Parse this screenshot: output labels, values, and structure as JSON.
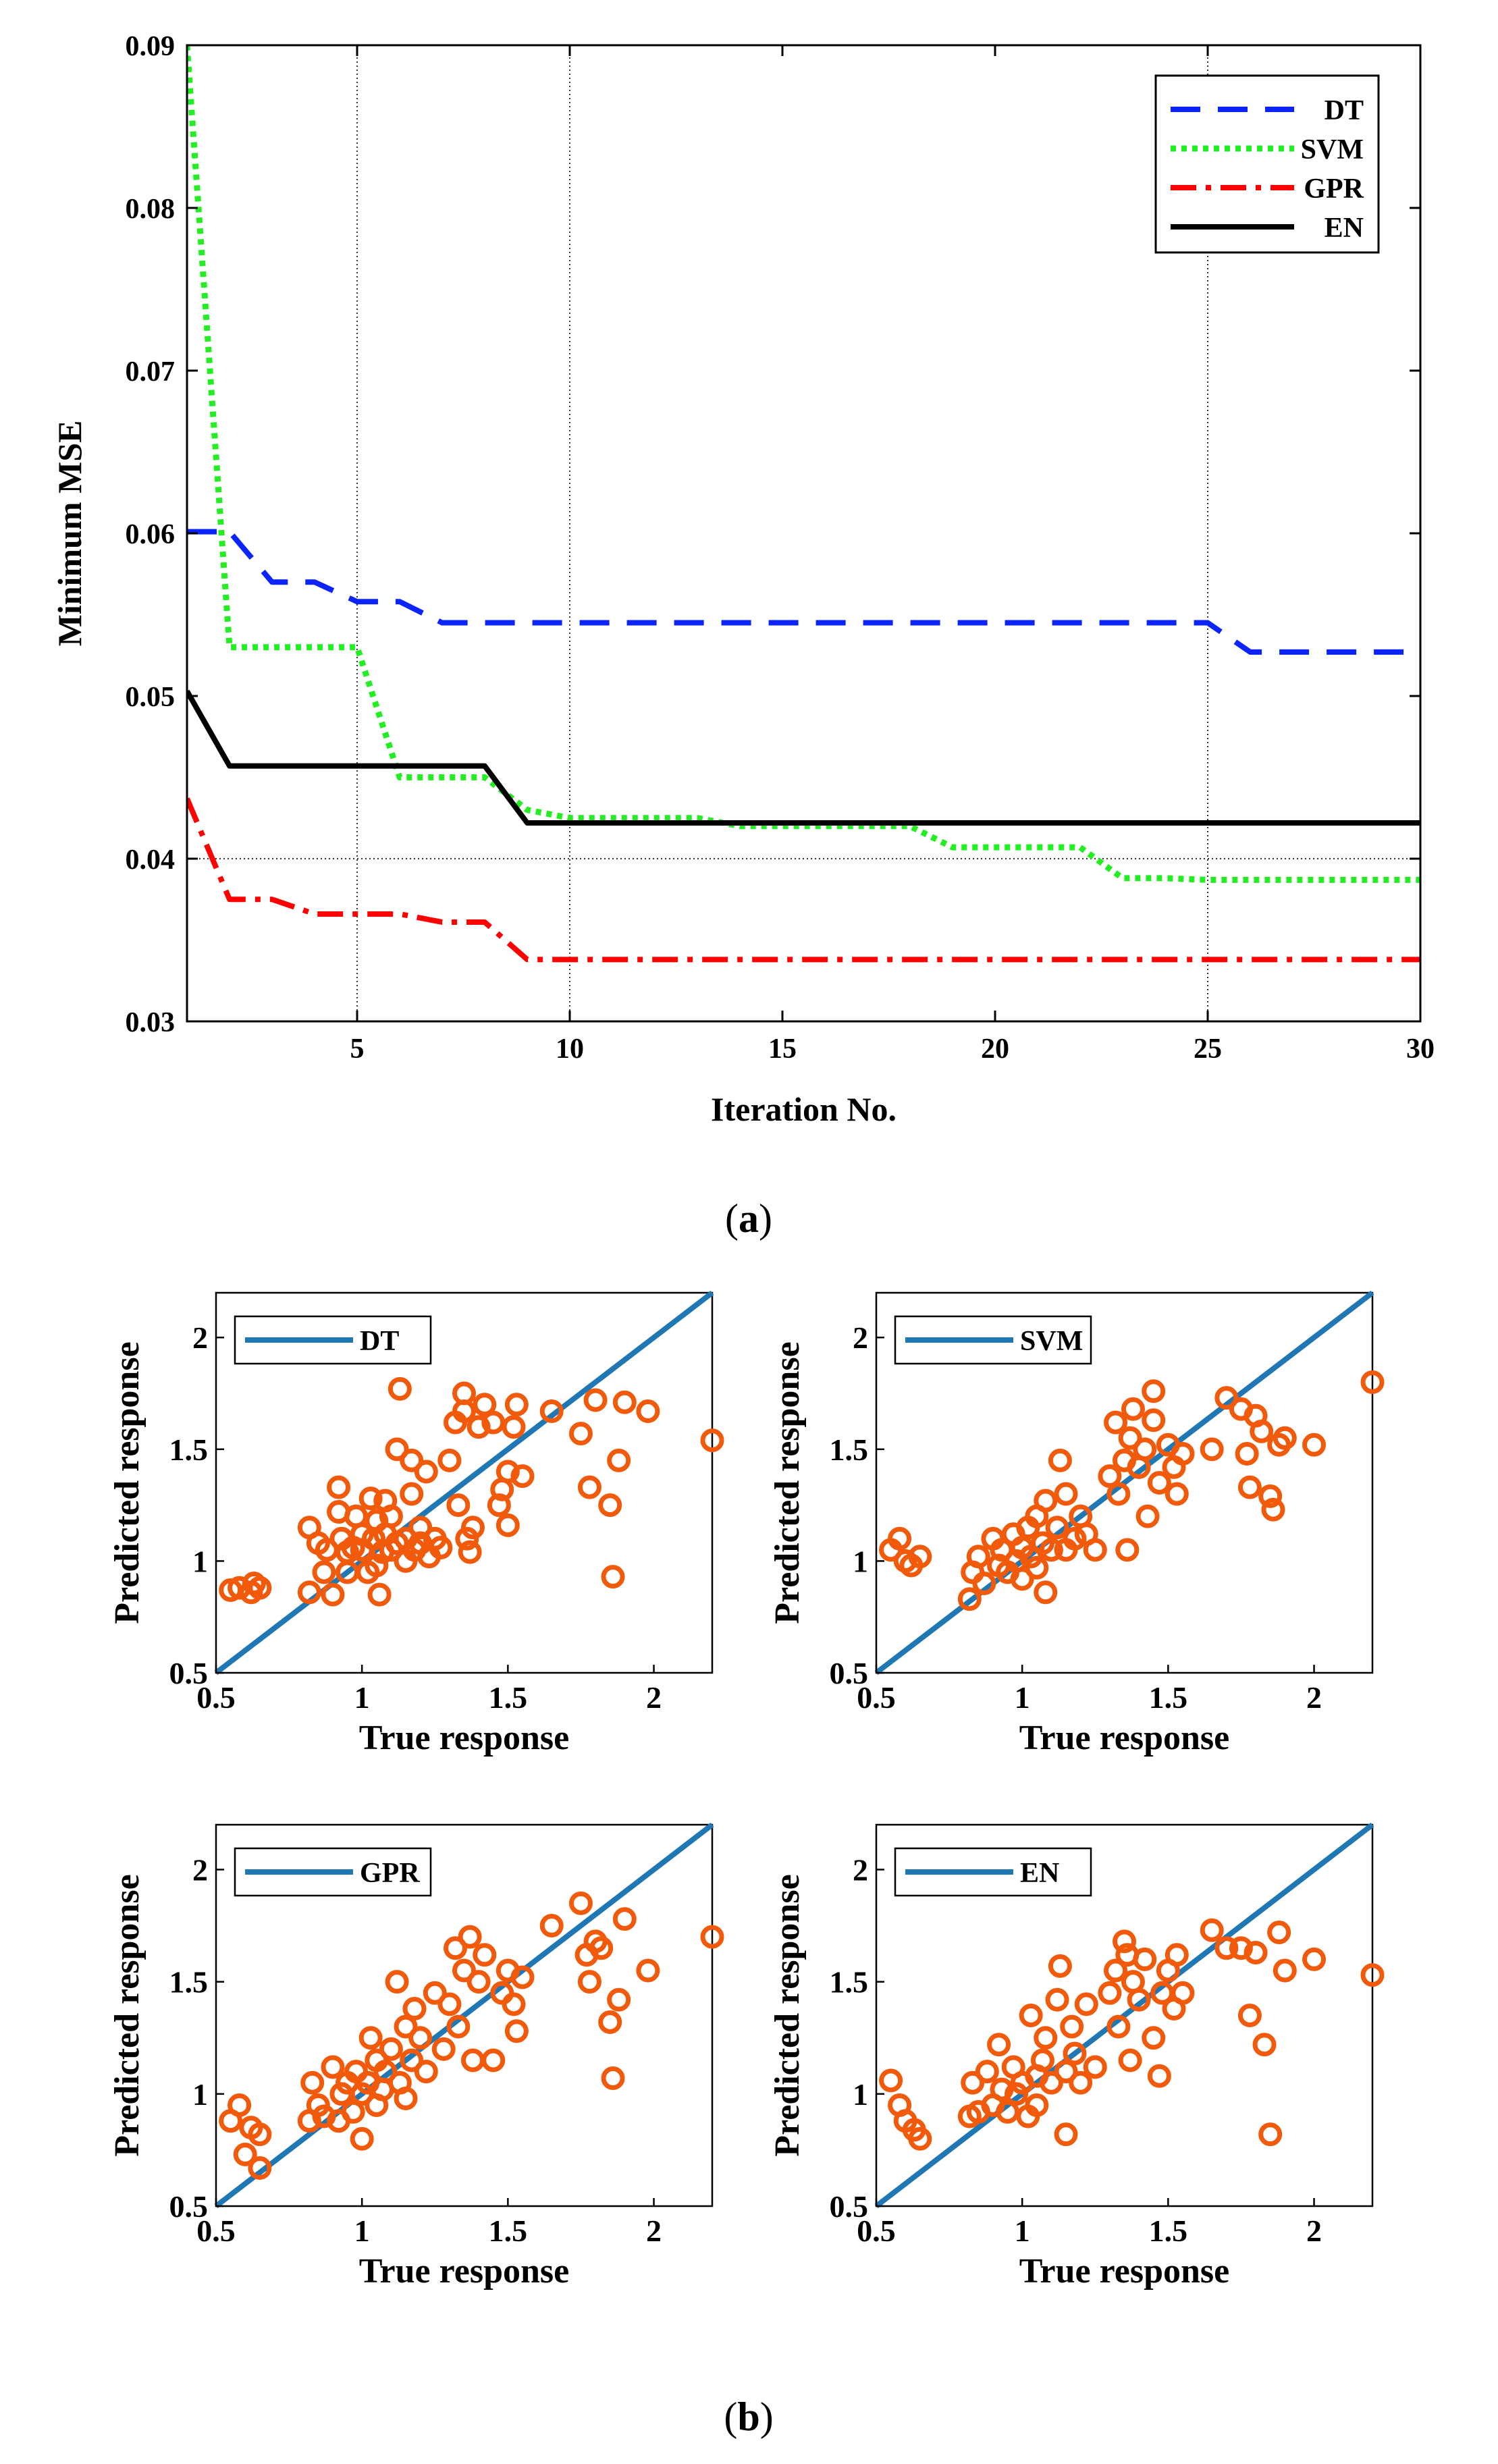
{
  "figure": {
    "label_a": "a",
    "label_b": "b",
    "colors": {
      "DT": "#0b24fb",
      "SVM": "#22ee22",
      "GPR": "#ff0000",
      "EN": "#000000",
      "ref_line": "#1f77b4",
      "scatter": "#f05a0a"
    }
  },
  "chart_data": [
    {
      "id": "a",
      "type": "line",
      "title": "",
      "xlabel": "Iteration No.",
      "ylabel": "Minimum MSE",
      "xlim": [
        1,
        30
      ],
      "ylim": [
        0.03,
        0.09
      ],
      "xticks": [
        5,
        10,
        15,
        20,
        25,
        30
      ],
      "yticks": [
        0.03,
        0.04,
        0.05,
        0.06,
        0.07,
        0.08,
        0.09
      ],
      "grid_x": [
        5,
        10,
        25
      ],
      "grid_y": [
        0.04
      ],
      "legend_position": "top-right",
      "series": [
        {
          "name": "DT",
          "style": "dashed",
          "x": [
            1,
            2,
            3,
            4,
            5,
            6,
            7,
            8,
            9,
            10,
            15,
            20,
            25,
            26,
            27,
            28,
            29,
            30
          ],
          "y": [
            0.0601,
            0.0601,
            0.057,
            0.057,
            0.0558,
            0.0558,
            0.0545,
            0.0545,
            0.0545,
            0.0545,
            0.0545,
            0.0545,
            0.0545,
            0.0527,
            0.0527,
            0.0527,
            0.0527,
            0.0527
          ]
        },
        {
          "name": "SVM",
          "style": "dotted",
          "x": [
            1,
            2,
            3,
            4,
            5,
            6,
            7,
            8,
            9,
            10,
            13,
            14,
            18,
            19,
            20,
            22,
            23,
            24,
            25,
            30
          ],
          "y": [
            0.09,
            0.053,
            0.053,
            0.053,
            0.053,
            0.045,
            0.045,
            0.045,
            0.043,
            0.0425,
            0.0425,
            0.042,
            0.042,
            0.0407,
            0.0407,
            0.0407,
            0.0388,
            0.0388,
            0.0387,
            0.0387
          ]
        },
        {
          "name": "GPR",
          "style": "dashdot",
          "x": [
            1,
            2,
            3,
            4,
            5,
            6,
            7,
            8,
            9,
            10,
            15,
            20,
            25,
            30
          ],
          "y": [
            0.0437,
            0.0375,
            0.0375,
            0.0366,
            0.0366,
            0.0366,
            0.0361,
            0.0361,
            0.0338,
            0.0338,
            0.0338,
            0.0338,
            0.0338,
            0.0338
          ]
        },
        {
          "name": "EN",
          "style": "solid",
          "x": [
            1,
            2,
            3,
            4,
            5,
            6,
            7,
            8,
            9,
            10,
            15,
            20,
            25,
            30
          ],
          "y": [
            0.0503,
            0.0457,
            0.0457,
            0.0457,
            0.0457,
            0.0457,
            0.0457,
            0.0457,
            0.0422,
            0.0422,
            0.0422,
            0.0422,
            0.0422,
            0.0422
          ]
        }
      ]
    },
    {
      "id": "b1",
      "type": "scatter",
      "legend": "DT",
      "xlabel": "True response",
      "ylabel": "Predicted response",
      "xlim": [
        0.5,
        2.2
      ],
      "ylim": [
        0.5,
        2.2
      ],
      "xticks": [
        0.5,
        1,
        1.5,
        2
      ],
      "yticks": [
        0.5,
        1,
        1.5,
        2
      ],
      "ref_line": [
        [
          0.5,
          0.5
        ],
        [
          2.2,
          2.2
        ]
      ],
      "points": [
        [
          0.55,
          0.87
        ],
        [
          0.58,
          0.88
        ],
        [
          0.62,
          0.86
        ],
        [
          0.63,
          0.9
        ],
        [
          0.65,
          0.88
        ],
        [
          0.82,
          0.86
        ],
        [
          0.82,
          1.15
        ],
        [
          0.85,
          1.08
        ],
        [
          0.87,
          0.95
        ],
        [
          0.88,
          1.05
        ],
        [
          0.9,
          0.85
        ],
        [
          0.92,
          1.22
        ],
        [
          0.92,
          1.33
        ],
        [
          0.93,
          1.1
        ],
        [
          0.95,
          0.95
        ],
        [
          0.95,
          1.04
        ],
        [
          0.97,
          1.06
        ],
        [
          0.98,
          1.2
        ],
        [
          1.0,
          1.05
        ],
        [
          1.0,
          1.12
        ],
        [
          1.02,
          0.95
        ],
        [
          1.03,
          1.28
        ],
        [
          1.04,
          1.1
        ],
        [
          1.05,
          0.98
        ],
        [
          1.05,
          1.18
        ],
        [
          1.06,
          0.85
        ],
        [
          1.07,
          1.04
        ],
        [
          1.08,
          1.27
        ],
        [
          1.08,
          1.12
        ],
        [
          1.1,
          1.05
        ],
        [
          1.1,
          1.2
        ],
        [
          1.12,
          1.08
        ],
        [
          1.12,
          1.5
        ],
        [
          1.13,
          1.77
        ],
        [
          1.15,
          1.0
        ],
        [
          1.15,
          1.1
        ],
        [
          1.17,
          1.3
        ],
        [
          1.17,
          1.45
        ],
        [
          1.18,
          1.05
        ],
        [
          1.2,
          1.08
        ],
        [
          1.2,
          1.15
        ],
        [
          1.22,
          1.4
        ],
        [
          1.23,
          1.02
        ],
        [
          1.25,
          1.1
        ],
        [
          1.27,
          1.06
        ],
        [
          1.3,
          1.45
        ],
        [
          1.32,
          1.62
        ],
        [
          1.33,
          1.25
        ],
        [
          1.35,
          1.67
        ],
        [
          1.35,
          1.75
        ],
        [
          1.36,
          1.1
        ],
        [
          1.37,
          1.04
        ],
        [
          1.38,
          1.15
        ],
        [
          1.4,
          1.6
        ],
        [
          1.42,
          1.7
        ],
        [
          1.45,
          1.62
        ],
        [
          1.47,
          1.25
        ],
        [
          1.48,
          1.32
        ],
        [
          1.5,
          1.16
        ],
        [
          1.5,
          1.4
        ],
        [
          1.52,
          1.6
        ],
        [
          1.53,
          1.7
        ],
        [
          1.55,
          1.38
        ],
        [
          1.65,
          1.67
        ],
        [
          1.75,
          1.57
        ],
        [
          1.78,
          1.33
        ],
        [
          1.8,
          1.72
        ],
        [
          1.85,
          1.25
        ],
        [
          1.86,
          0.93
        ],
        [
          1.88,
          1.45
        ],
        [
          1.9,
          1.71
        ],
        [
          1.98,
          1.67
        ],
        [
          2.2,
          1.54
        ]
      ]
    },
    {
      "id": "b2",
      "type": "scatter",
      "legend": "SVM",
      "xlabel": "True response",
      "ylabel": "Predicted response",
      "xlim": [
        0.5,
        2.2
      ],
      "ylim": [
        0.5,
        2.2
      ],
      "xticks": [
        0.5,
        1,
        1.5,
        2
      ],
      "yticks": [
        0.5,
        1,
        1.5,
        2
      ],
      "ref_line": [
        [
          0.5,
          0.5
        ],
        [
          2.2,
          2.2
        ]
      ],
      "points": [
        [
          0.55,
          1.05
        ],
        [
          0.58,
          1.1
        ],
        [
          0.6,
          1.0
        ],
        [
          0.62,
          0.98
        ],
        [
          0.65,
          1.02
        ],
        [
          0.82,
          0.83
        ],
        [
          0.83,
          0.95
        ],
        [
          0.85,
          1.02
        ],
        [
          0.87,
          0.9
        ],
        [
          0.9,
          1.1
        ],
        [
          0.92,
          0.98
        ],
        [
          0.93,
          1.05
        ],
        [
          0.95,
          0.95
        ],
        [
          0.97,
          1.12
        ],
        [
          0.98,
          1.0
        ],
        [
          1.0,
          0.92
        ],
        [
          1.0,
          1.06
        ],
        [
          1.02,
          1.15
        ],
        [
          1.03,
          1.02
        ],
        [
          1.05,
          1.2
        ],
        [
          1.05,
          0.97
        ],
        [
          1.07,
          1.08
        ],
        [
          1.08,
          1.27
        ],
        [
          1.08,
          0.86
        ],
        [
          1.1,
          1.05
        ],
        [
          1.12,
          1.15
        ],
        [
          1.13,
          1.45
        ],
        [
          1.15,
          1.05
        ],
        [
          1.15,
          1.3
        ],
        [
          1.18,
          1.1
        ],
        [
          1.2,
          1.2
        ],
        [
          1.22,
          1.12
        ],
        [
          1.25,
          1.05
        ],
        [
          1.3,
          1.38
        ],
        [
          1.32,
          1.62
        ],
        [
          1.33,
          1.3
        ],
        [
          1.35,
          1.45
        ],
        [
          1.36,
          1.05
        ],
        [
          1.37,
          1.55
        ],
        [
          1.38,
          1.68
        ],
        [
          1.4,
          1.42
        ],
        [
          1.42,
          1.5
        ],
        [
          1.43,
          1.2
        ],
        [
          1.45,
          1.76
        ],
        [
          1.45,
          1.63
        ],
        [
          1.47,
          1.35
        ],
        [
          1.5,
          1.52
        ],
        [
          1.52,
          1.42
        ],
        [
          1.53,
          1.3
        ],
        [
          1.55,
          1.48
        ],
        [
          1.65,
          1.5
        ],
        [
          1.7,
          1.73
        ],
        [
          1.75,
          1.68
        ],
        [
          1.77,
          1.48
        ],
        [
          1.78,
          1.33
        ],
        [
          1.8,
          1.65
        ],
        [
          1.82,
          1.58
        ],
        [
          1.85,
          1.29
        ],
        [
          1.86,
          1.23
        ],
        [
          1.88,
          1.52
        ],
        [
          1.9,
          1.55
        ],
        [
          2.0,
          1.52
        ],
        [
          2.2,
          1.8
        ]
      ]
    },
    {
      "id": "b3",
      "type": "scatter",
      "legend": "GPR",
      "xlabel": "True response",
      "ylabel": "Predicted response",
      "xlim": [
        0.5,
        2.2
      ],
      "ylim": [
        0.5,
        2.2
      ],
      "xticks": [
        0.5,
        1,
        1.5,
        2
      ],
      "yticks": [
        0.5,
        1,
        1.5,
        2
      ],
      "ref_line": [
        [
          0.5,
          0.5
        ],
        [
          2.2,
          2.2
        ]
      ],
      "points": [
        [
          0.55,
          0.88
        ],
        [
          0.58,
          0.95
        ],
        [
          0.6,
          0.73
        ],
        [
          0.62,
          0.85
        ],
        [
          0.65,
          0.67
        ],
        [
          0.65,
          0.82
        ],
        [
          0.82,
          0.88
        ],
        [
          0.83,
          1.05
        ],
        [
          0.85,
          0.95
        ],
        [
          0.87,
          0.9
        ],
        [
          0.9,
          1.12
        ],
        [
          0.92,
          0.88
        ],
        [
          0.93,
          1.0
        ],
        [
          0.95,
          1.05
        ],
        [
          0.97,
          0.92
        ],
        [
          0.98,
          1.1
        ],
        [
          1.0,
          0.8
        ],
        [
          1.0,
          1.0
        ],
        [
          1.02,
          1.05
        ],
        [
          1.03,
          1.25
        ],
        [
          1.05,
          0.95
        ],
        [
          1.05,
          1.15
        ],
        [
          1.07,
          1.02
        ],
        [
          1.08,
          1.1
        ],
        [
          1.1,
          1.2
        ],
        [
          1.12,
          1.5
        ],
        [
          1.13,
          1.05
        ],
        [
          1.15,
          0.98
        ],
        [
          1.15,
          1.3
        ],
        [
          1.17,
          1.15
        ],
        [
          1.18,
          1.38
        ],
        [
          1.2,
          1.25
        ],
        [
          1.22,
          1.1
        ],
        [
          1.25,
          1.45
        ],
        [
          1.28,
          1.2
        ],
        [
          1.3,
          1.4
        ],
        [
          1.32,
          1.65
        ],
        [
          1.33,
          1.3
        ],
        [
          1.35,
          1.55
        ],
        [
          1.37,
          1.7
        ],
        [
          1.38,
          1.15
        ],
        [
          1.4,
          1.5
        ],
        [
          1.42,
          1.62
        ],
        [
          1.45,
          1.15
        ],
        [
          1.48,
          1.45
        ],
        [
          1.5,
          1.55
        ],
        [
          1.52,
          1.4
        ],
        [
          1.53,
          1.28
        ],
        [
          1.55,
          1.52
        ],
        [
          1.65,
          1.75
        ],
        [
          1.75,
          1.85
        ],
        [
          1.77,
          1.62
        ],
        [
          1.78,
          1.5
        ],
        [
          1.8,
          1.68
        ],
        [
          1.82,
          1.65
        ],
        [
          1.85,
          1.32
        ],
        [
          1.86,
          1.07
        ],
        [
          1.88,
          1.42
        ],
        [
          1.9,
          1.78
        ],
        [
          1.98,
          1.55
        ],
        [
          2.2,
          1.7
        ]
      ]
    },
    {
      "id": "b4",
      "type": "scatter",
      "legend": "EN",
      "xlabel": "True response",
      "ylabel": "Predicted response",
      "xlim": [
        0.5,
        2.2
      ],
      "ylim": [
        0.5,
        2.2
      ],
      "xticks": [
        0.5,
        1,
        1.5,
        2
      ],
      "yticks": [
        0.5,
        1,
        1.5,
        2
      ],
      "ref_line": [
        [
          0.5,
          0.5
        ],
        [
          2.2,
          2.2
        ]
      ],
      "points": [
        [
          0.55,
          1.06
        ],
        [
          0.58,
          0.95
        ],
        [
          0.6,
          0.88
        ],
        [
          0.63,
          0.84
        ],
        [
          0.65,
          0.8
        ],
        [
          0.82,
          0.9
        ],
        [
          0.83,
          1.05
        ],
        [
          0.85,
          0.92
        ],
        [
          0.88,
          1.1
        ],
        [
          0.9,
          0.95
        ],
        [
          0.92,
          1.22
        ],
        [
          0.93,
          1.02
        ],
        [
          0.95,
          0.92
        ],
        [
          0.97,
          1.12
        ],
        [
          0.98,
          1.0
        ],
        [
          1.0,
          1.05
        ],
        [
          1.02,
          0.9
        ],
        [
          1.03,
          1.35
        ],
        [
          1.05,
          1.08
        ],
        [
          1.05,
          0.95
        ],
        [
          1.07,
          1.15
        ],
        [
          1.08,
          1.25
        ],
        [
          1.1,
          1.05
        ],
        [
          1.12,
          1.42
        ],
        [
          1.13,
          1.57
        ],
        [
          1.15,
          1.1
        ],
        [
          1.15,
          0.82
        ],
        [
          1.17,
          1.3
        ],
        [
          1.18,
          1.18
        ],
        [
          1.2,
          1.05
        ],
        [
          1.22,
          1.4
        ],
        [
          1.25,
          1.12
        ],
        [
          1.3,
          1.45
        ],
        [
          1.32,
          1.55
        ],
        [
          1.33,
          1.3
        ],
        [
          1.35,
          1.68
        ],
        [
          1.36,
          1.62
        ],
        [
          1.37,
          1.15
        ],
        [
          1.38,
          1.5
        ],
        [
          1.4,
          1.42
        ],
        [
          1.42,
          1.6
        ],
        [
          1.45,
          1.25
        ],
        [
          1.47,
          1.08
        ],
        [
          1.48,
          1.45
        ],
        [
          1.5,
          1.55
        ],
        [
          1.52,
          1.38
        ],
        [
          1.53,
          1.62
        ],
        [
          1.55,
          1.45
        ],
        [
          1.65,
          1.73
        ],
        [
          1.7,
          1.65
        ],
        [
          1.75,
          1.65
        ],
        [
          1.78,
          1.35
        ],
        [
          1.8,
          1.63
        ],
        [
          1.83,
          1.22
        ],
        [
          1.85,
          0.82
        ],
        [
          1.88,
          1.72
        ],
        [
          1.9,
          1.55
        ],
        [
          2.0,
          1.6
        ],
        [
          2.2,
          1.53
        ]
      ]
    }
  ]
}
